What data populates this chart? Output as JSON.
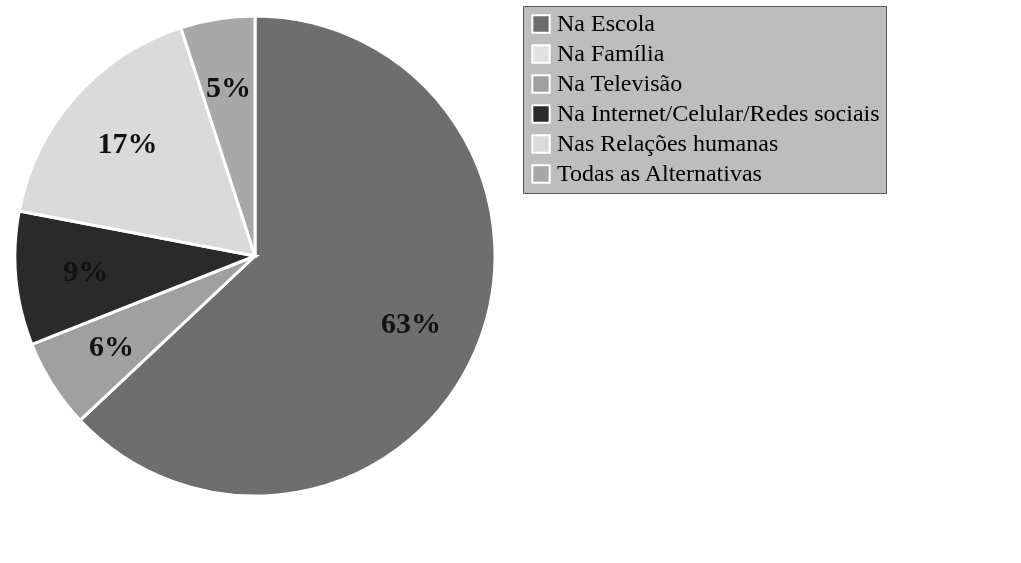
{
  "chart_data": {
    "type": "pie",
    "categories": [
      "Na Escola",
      "Na Família",
      "Na Televisão",
      "Na Internet/Celular/Redes sociais",
      "Nas Relações humanas",
      "Todas as Alternativas"
    ],
    "values": [
      63,
      0,
      6,
      9,
      17,
      5
    ],
    "value_labels": [
      "63%",
      null,
      "6%",
      "9%",
      "17%",
      "5%"
    ],
    "colors": [
      "#6e6e6e",
      "#e2e2e2",
      "#a0a0a0",
      "#2a2a2a",
      "#dadada",
      "#a8a8a8"
    ],
    "legend": "right"
  }
}
